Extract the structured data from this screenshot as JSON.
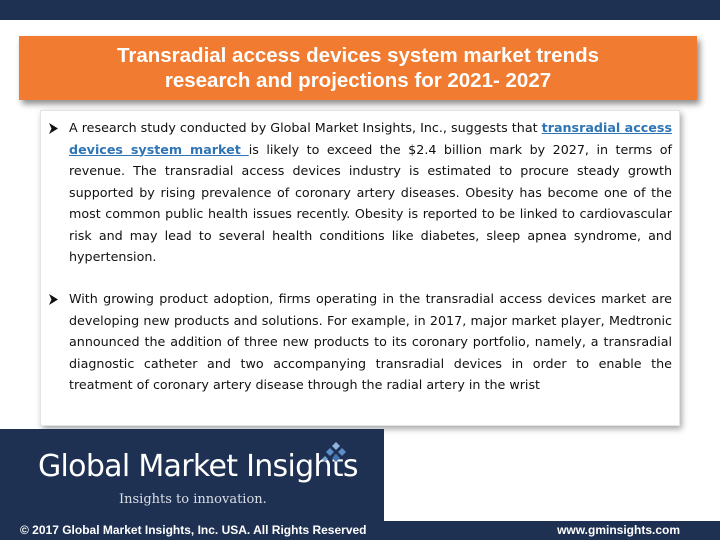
{
  "title": {
    "line1": "Transradial access devices system market trends",
    "line2": "research and projections for 2021- 2027"
  },
  "bullets": [
    {
      "before_link": "A research study conducted by Global Market Insights, Inc., suggests that ",
      "link_text": "transradial access devices system market ",
      "after_link": "is likely to exceed the $2.4  billion mark by 2027, in terms of revenue. The transradial access devices industry is estimated to procure steady growth supported by rising prevalence of coronary artery diseases. Obesity has become one of the most common public health issues recently. Obesity is reported to be linked to cardiovascular risk and may lead to several health conditions like diabetes, sleep apnea syndrome, and hypertension."
    },
    {
      "text": "With growing product adoption, firms operating in the transradial access devices market are developing new products and solutions. For example, in 2017, major market player, Medtronic announced the addition of three new products to its coronary portfolio, namely, a transradial diagnostic catheter and two accompanying transradial devices in order to enable the treatment of coronary artery disease through the radial artery in the wrist"
    }
  ],
  "logo": {
    "name": "Global Market Insights",
    "tagline": "Insights to innovation."
  },
  "footer": {
    "copyright": "© 2017 Global Market Insights, Inc. USA. All Rights Reserved",
    "website": "www.gminsights.com"
  },
  "colors": {
    "navy": "#1f3152",
    "title_orange": "#f07b31",
    "link_blue": "#2e75b6",
    "logo_mark_blue": "#5b8fc9"
  },
  "icons": {
    "bullet": "arrow-bullet-icon",
    "logo": "diamond-cluster-logo-icon"
  }
}
